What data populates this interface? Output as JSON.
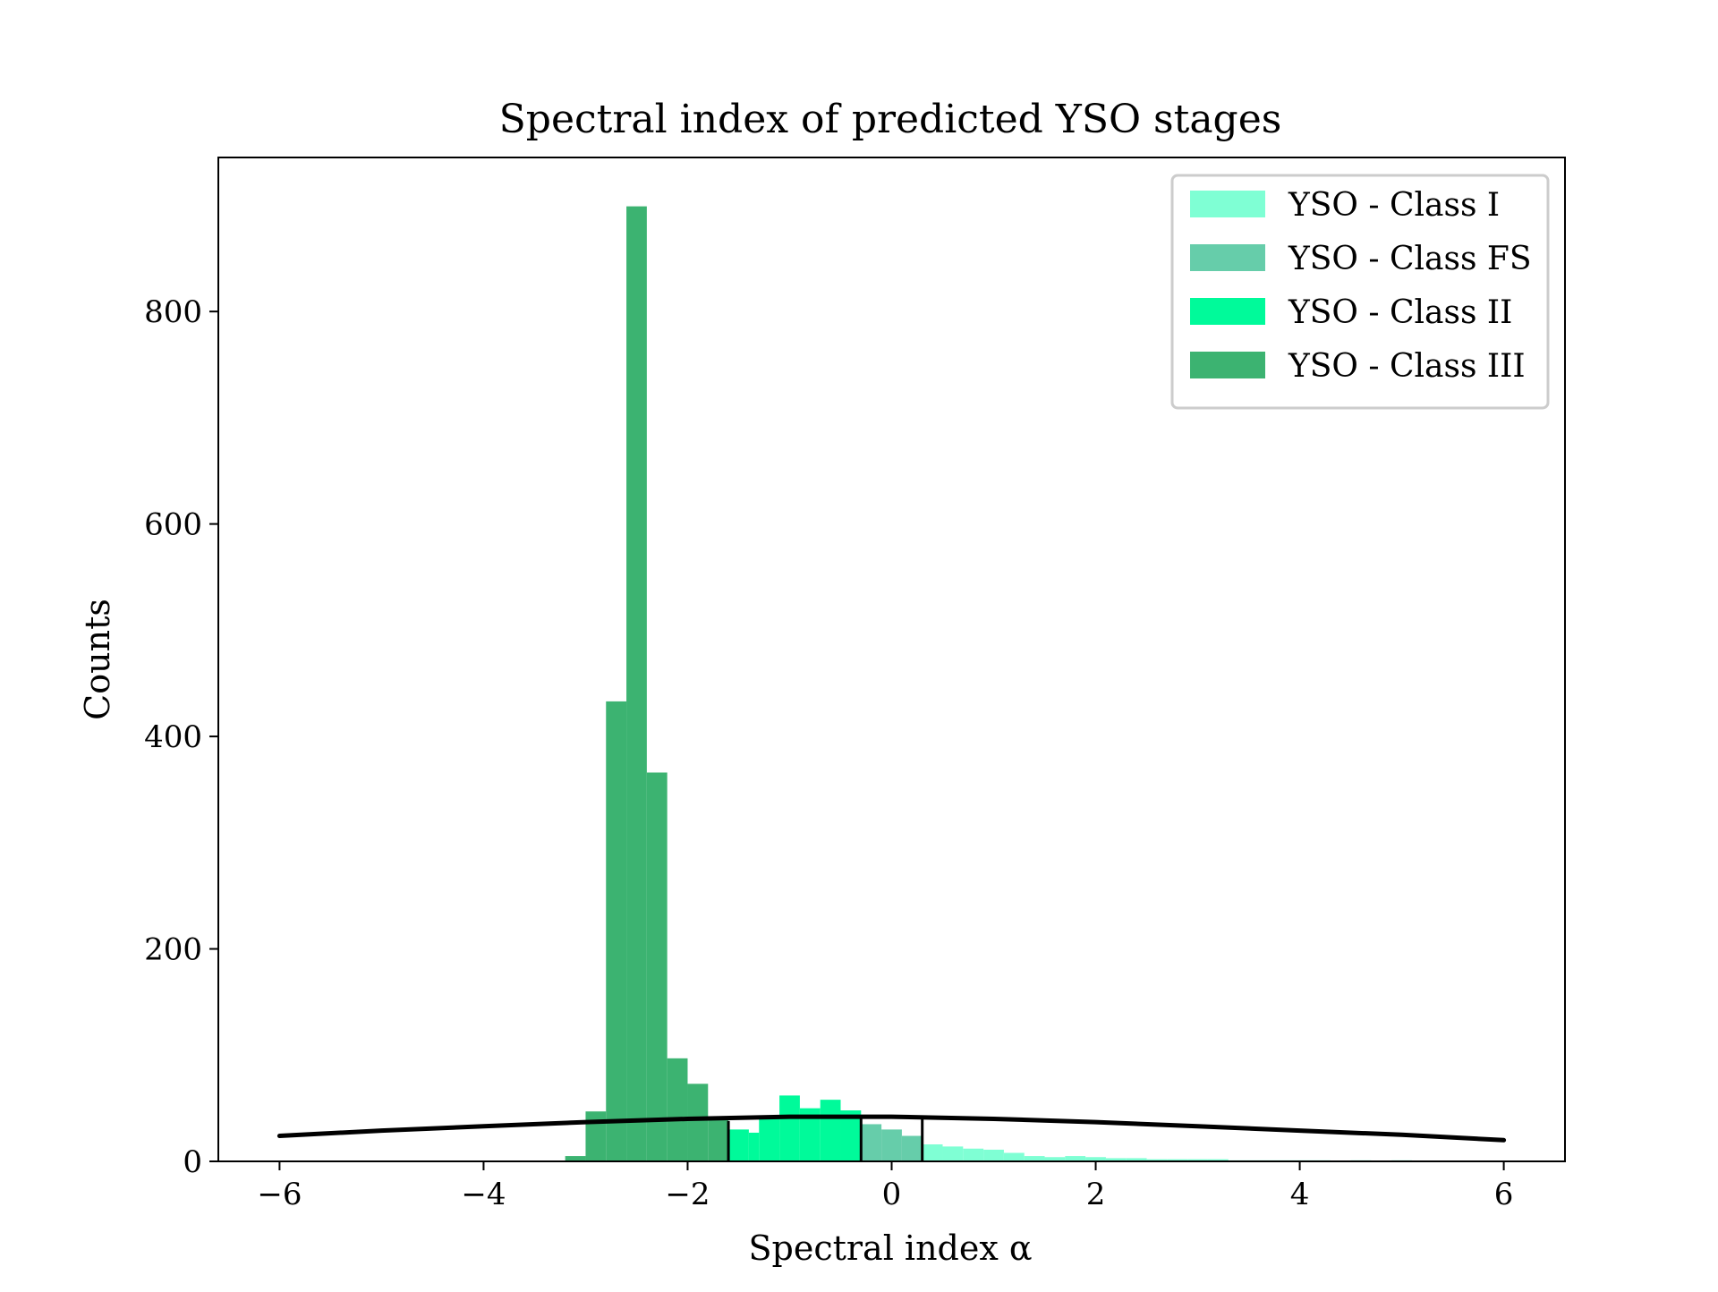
{
  "chart_data": {
    "type": "bar",
    "title": "Spectral index of predicted YSO stages",
    "xlabel": "Spectral index α",
    "ylabel": "Counts",
    "xlim": [
      -6.6,
      6.6
    ],
    "ylim": [
      0,
      945
    ],
    "x_ticks": [
      {
        "value": -6,
        "label": "−6"
      },
      {
        "value": -4,
        "label": "−4"
      },
      {
        "value": -2,
        "label": "−2"
      },
      {
        "value": 0,
        "label": "0"
      },
      {
        "value": 2,
        "label": "2"
      },
      {
        "value": 4,
        "label": "4"
      },
      {
        "value": 6,
        "label": "6"
      }
    ],
    "y_ticks": [
      {
        "value": 0,
        "label": "0"
      },
      {
        "value": 200,
        "label": "200"
      },
      {
        "value": 400,
        "label": "400"
      },
      {
        "value": 600,
        "label": "600"
      },
      {
        "value": 800,
        "label": "800"
      }
    ],
    "legend_position": "top-right",
    "grid": false,
    "series": [
      {
        "name": "YSO - Class I",
        "color": "#7fffd4",
        "bins": [
          {
            "x0": 0.3,
            "x1": 0.5,
            "count": 16
          },
          {
            "x0": 0.5,
            "x1": 0.7,
            "count": 14
          },
          {
            "x0": 0.7,
            "x1": 0.9,
            "count": 12
          },
          {
            "x0": 0.9,
            "x1": 1.1,
            "count": 11
          },
          {
            "x0": 1.1,
            "x1": 1.3,
            "count": 8
          },
          {
            "x0": 1.3,
            "x1": 1.5,
            "count": 5
          },
          {
            "x0": 1.5,
            "x1": 1.7,
            "count": 4
          },
          {
            "x0": 1.7,
            "x1": 1.9,
            "count": 5
          },
          {
            "x0": 1.9,
            "x1": 2.1,
            "count": 4
          },
          {
            "x0": 2.1,
            "x1": 2.3,
            "count": 3
          },
          {
            "x0": 2.3,
            "x1": 2.5,
            "count": 3
          },
          {
            "x0": 2.5,
            "x1": 2.7,
            "count": 2
          },
          {
            "x0": 2.7,
            "x1": 2.9,
            "count": 2
          },
          {
            "x0": 2.9,
            "x1": 3.1,
            "count": 2
          },
          {
            "x0": 3.1,
            "x1": 3.3,
            "count": 2
          },
          {
            "x0": 3.3,
            "x1": 3.5,
            "count": 1
          },
          {
            "x0": 3.5,
            "x1": 3.7,
            "count": 1
          },
          {
            "x0": 3.7,
            "x1": 3.9,
            "count": 1
          },
          {
            "x0": 3.9,
            "x1": 4.1,
            "count": 1
          },
          {
            "x0": 4.1,
            "x1": 4.3,
            "count": 1
          },
          {
            "x0": 4.5,
            "x1": 4.7,
            "count": 1
          },
          {
            "x0": 4.9,
            "x1": 5.1,
            "count": 1
          }
        ]
      },
      {
        "name": "YSO - Class FS",
        "color": "#66cdaa",
        "bins": [
          {
            "x0": -0.3,
            "x1": -0.1,
            "count": 35
          },
          {
            "x0": -0.1,
            "x1": 0.1,
            "count": 30
          },
          {
            "x0": 0.1,
            "x1": 0.3,
            "count": 24
          }
        ]
      },
      {
        "name": "YSO - Class II",
        "color": "#00fa9a",
        "bins": [
          {
            "x0": -1.6,
            "x1": -1.4,
            "count": 30
          },
          {
            "x0": -1.4,
            "x1": -1.3,
            "count": 27
          },
          {
            "x0": -1.3,
            "x1": -1.1,
            "count": 40
          },
          {
            "x0": -1.1,
            "x1": -0.9,
            "count": 62
          },
          {
            "x0": -0.9,
            "x1": -0.7,
            "count": 50
          },
          {
            "x0": -0.7,
            "x1": -0.5,
            "count": 58
          },
          {
            "x0": -0.5,
            "x1": -0.3,
            "count": 48
          }
        ]
      },
      {
        "name": "YSO - Class III",
        "color": "#3cb371",
        "bins": [
          {
            "x0": -3.2,
            "x1": -3.0,
            "count": 5
          },
          {
            "x0": -3.0,
            "x1": -2.8,
            "count": 47
          },
          {
            "x0": -2.8,
            "x1": -2.6,
            "count": 433
          },
          {
            "x0": -2.6,
            "x1": -2.4,
            "count": 899
          },
          {
            "x0": -2.4,
            "x1": -2.2,
            "count": 366
          },
          {
            "x0": -2.2,
            "x1": -2.0,
            "count": 97
          },
          {
            "x0": -2.0,
            "x1": -1.8,
            "count": 73
          },
          {
            "x0": -1.8,
            "x1": -1.6,
            "count": 40
          }
        ]
      }
    ],
    "curve": {
      "name": "fit",
      "color": "#000000",
      "points": [
        {
          "x": -6.0,
          "y": 24
        },
        {
          "x": -5.0,
          "y": 29
        },
        {
          "x": -4.0,
          "y": 33
        },
        {
          "x": -3.0,
          "y": 37
        },
        {
          "x": -2.0,
          "y": 40
        },
        {
          "x": -1.0,
          "y": 42
        },
        {
          "x": 0.0,
          "y": 42
        },
        {
          "x": 1.0,
          "y": 40
        },
        {
          "x": 2.0,
          "y": 37
        },
        {
          "x": 3.0,
          "y": 33
        },
        {
          "x": 4.0,
          "y": 29
        },
        {
          "x": 5.0,
          "y": 25
        },
        {
          "x": 6.0,
          "y": 20
        }
      ]
    },
    "vlines": [
      {
        "x": -1.6,
        "ymax": 38
      },
      {
        "x": -0.3,
        "ymax": 42
      },
      {
        "x": 0.3,
        "ymax": 42
      }
    ]
  }
}
